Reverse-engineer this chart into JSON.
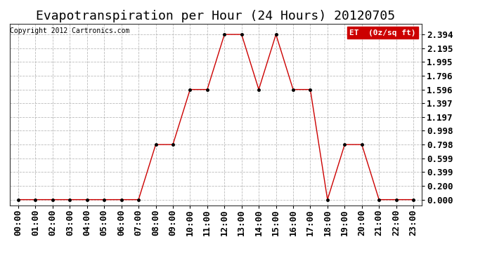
{
  "title": "Evapotranspiration per Hour (24 Hours) 20120705",
  "copyright": "Copyright 2012 Cartronics.com",
  "legend_label": "ET  (0z/sq ft)",
  "hours": [
    "00:00",
    "01:00",
    "02:00",
    "03:00",
    "04:00",
    "05:00",
    "06:00",
    "07:00",
    "08:00",
    "09:00",
    "10:00",
    "11:00",
    "12:00",
    "13:00",
    "14:00",
    "15:00",
    "16:00",
    "17:00",
    "18:00",
    "19:00",
    "20:00",
    "21:00",
    "22:00",
    "23:00"
  ],
  "values": [
    0.0,
    0.0,
    0.0,
    0.0,
    0.0,
    0.0,
    0.0,
    0.0,
    0.798,
    0.798,
    1.596,
    1.596,
    2.394,
    2.394,
    1.596,
    2.394,
    1.596,
    1.596,
    0.0,
    0.798,
    0.798,
    0.0,
    0.0,
    0.0
  ],
  "yticks": [
    0.0,
    0.2,
    0.399,
    0.599,
    0.798,
    0.998,
    1.197,
    1.397,
    1.596,
    1.796,
    1.995,
    2.195,
    2.394
  ],
  "ytick_labels": [
    "0.000",
    "0.200",
    "0.399",
    "0.599",
    "0.798",
    "0.998",
    "1.197",
    "1.397",
    "1.596",
    "1.796",
    "1.995",
    "2.195",
    "2.394"
  ],
  "line_color": "#cc0000",
  "marker_color": "#000000",
  "grid_color": "#aaaaaa",
  "bg_color": "#ffffff",
  "plot_bg_color": "#ffffff",
  "title_fontsize": 13,
  "tick_fontsize": 9,
  "copyright_fontsize": 7,
  "legend_bg_color": "#cc0000",
  "legend_text_color": "#ffffff",
  "ylim_min": -0.08,
  "ylim_max": 2.55
}
